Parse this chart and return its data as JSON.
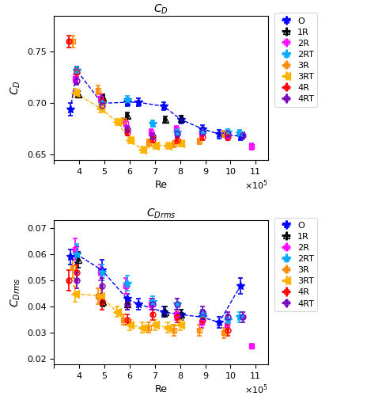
{
  "CD": {
    "O": {
      "Re": [
        365000.0,
        390000.0,
        490000.0,
        590000.0,
        635000.0,
        735000.0,
        805000.0,
        890000.0,
        955000.0,
        1040000.0
      ],
      "val": [
        0.694,
        0.732,
        0.7,
        0.701,
        0.701,
        0.697,
        0.684,
        0.675,
        0.67,
        0.668
      ],
      "xerr": [
        4000.0,
        4000.0,
        4000.0,
        4000.0,
        4000.0,
        4000.0,
        4000.0,
        4000.0,
        4000.0,
        4000.0
      ],
      "yerr": [
        0.006,
        0.004,
        0.004,
        0.004,
        0.004,
        0.004,
        0.004,
        0.004,
        0.004,
        0.004
      ]
    },
    "1R": {
      "Re": [
        395000.0,
        495000.0,
        590000.0,
        740000.0,
        805000.0
      ],
      "val": [
        0.709,
        0.706,
        0.688,
        0.684,
        0.685
      ],
      "xerr": [
        4000.0,
        4000.0,
        4000.0,
        4000.0,
        4000.0
      ],
      "yerr": [
        0.003,
        0.003,
        0.003,
        0.003,
        0.003
      ]
    },
    "2R": {
      "Re": [
        385000.0,
        485000.0,
        585000.0,
        685000.0,
        785000.0,
        885000.0,
        985000.0,
        1085000.0
      ],
      "val": [
        0.724,
        0.705,
        0.68,
        0.672,
        0.675,
        0.671,
        0.669,
        0.658
      ],
      "xerr": [
        4000.0,
        4000.0,
        4000.0,
        4000.0,
        4000.0,
        4000.0,
        4000.0,
        4000.0
      ],
      "yerr": [
        0.004,
        0.004,
        0.003,
        0.003,
        0.003,
        0.003,
        0.003,
        0.003
      ]
    },
    "2RT": {
      "Re": [
        390000.0,
        490000.0,
        590000.0,
        690000.0,
        790000.0,
        890000.0,
        990000.0,
        1035000.0
      ],
      "val": [
        0.732,
        0.7,
        0.703,
        0.68,
        0.672,
        0.672,
        0.672,
        0.671
      ],
      "xerr": [
        4000.0,
        4000.0,
        4000.0,
        4000.0,
        4000.0,
        4000.0,
        4000.0,
        4000.0
      ],
      "yerr": [
        0.004,
        0.004,
        0.004,
        0.003,
        0.003,
        0.003,
        0.003,
        0.003
      ]
    },
    "3R": {
      "Re": [
        375000.0,
        475000.0,
        575000.0,
        675000.0,
        775000.0,
        875000.0,
        975000.0
      ],
      "val": [
        0.76,
        0.713,
        0.683,
        0.662,
        0.66,
        0.663,
        0.67
      ],
      "xerr": [
        4000.0,
        4000.0,
        4000.0,
        4000.0,
        4000.0,
        4000.0,
        4000.0
      ],
      "yerr": [
        0.006,
        0.004,
        0.003,
        0.003,
        0.003,
        0.003,
        0.003
      ]
    },
    "3RT": {
      "Re": [
        385000.0,
        485000.0,
        550000.0,
        600000.0,
        650000.0,
        700000.0,
        750000.0,
        800000.0
      ],
      "val": [
        0.71,
        0.695,
        0.682,
        0.664,
        0.655,
        0.659,
        0.659,
        0.661
      ],
      "xerr": [
        4000.0,
        4000.0,
        4000.0,
        4000.0,
        4000.0,
        4000.0,
        4000.0,
        4000.0
      ],
      "yerr": [
        0.004,
        0.004,
        0.003,
        0.003,
        0.003,
        0.003,
        0.003,
        0.003
      ]
    },
    "4R": {
      "Re": [
        360000.0,
        390000.0,
        490000.0,
        590000.0,
        690000.0,
        790000.0,
        890000.0,
        990000.0
      ],
      "val": [
        0.76,
        0.73,
        0.702,
        0.672,
        0.665,
        0.664,
        0.667,
        0.667
      ],
      "xerr": [
        3000.0,
        3000.0,
        3000.0,
        3000.0,
        3000.0,
        3000.0,
        3000.0,
        3000.0
      ],
      "yerr": [
        0.006,
        0.004,
        0.004,
        0.003,
        0.003,
        0.003,
        0.003,
        0.003
      ]
    },
    "4RT": {
      "Re": [
        390000.0,
        490000.0,
        590000.0,
        690000.0,
        790000.0,
        890000.0,
        990000.0,
        1050000.0
      ],
      "val": [
        0.722,
        0.698,
        0.675,
        0.668,
        0.67,
        0.672,
        0.67,
        0.669
      ],
      "xerr": [
        4000.0,
        4000.0,
        4000.0,
        4000.0,
        4000.0,
        4000.0,
        4000.0,
        4000.0
      ],
      "yerr": [
        0.004,
        0.004,
        0.003,
        0.003,
        0.003,
        0.003,
        0.003,
        0.003
      ]
    }
  },
  "CDrms": {
    "O": {
      "Re": [
        365000.0,
        390000.0,
        490000.0,
        590000.0,
        635000.0,
        735000.0,
        805000.0,
        890000.0,
        955000.0,
        1040000.0
      ],
      "val": [
        0.059,
        0.06,
        0.054,
        0.043,
        0.041,
        0.038,
        0.037,
        0.036,
        0.034,
        0.048
      ],
      "xerr": [
        4000.0,
        4000.0,
        4000.0,
        4000.0,
        4000.0,
        4000.0,
        4000.0,
        4000.0,
        4000.0,
        4000.0
      ],
      "yerr": [
        0.003,
        0.003,
        0.004,
        0.002,
        0.002,
        0.002,
        0.002,
        0.002,
        0.002,
        0.003
      ]
    },
    "1R": {
      "Re": [
        395000.0,
        495000.0,
        590000.0,
        740000.0,
        805000.0
      ],
      "val": [
        0.058,
        0.042,
        0.041,
        0.038,
        0.037
      ],
      "xerr": [
        4000.0,
        4000.0,
        4000.0,
        4000.0,
        4000.0
      ],
      "yerr": [
        0.003,
        0.002,
        0.002,
        0.002,
        0.002
      ]
    },
    "2R": {
      "Re": [
        385000.0,
        485000.0,
        585000.0,
        685000.0,
        785000.0,
        885000.0,
        985000.0,
        1085000.0
      ],
      "val": [
        0.062,
        0.053,
        0.048,
        0.041,
        0.037,
        0.034,
        0.033,
        0.025
      ],
      "xerr": [
        4000.0,
        4000.0,
        4000.0,
        4000.0,
        4000.0,
        4000.0,
        4000.0,
        4000.0
      ],
      "yerr": [
        0.004,
        0.003,
        0.003,
        0.002,
        0.002,
        0.002,
        0.002,
        0.001
      ]
    },
    "2RT": {
      "Re": [
        390000.0,
        490000.0,
        590000.0,
        690000.0,
        790000.0,
        890000.0,
        990000.0,
        1035000.0
      ],
      "val": [
        0.06,
        0.053,
        0.049,
        0.042,
        0.041,
        0.037,
        0.035,
        0.036
      ],
      "xerr": [
        4000.0,
        4000.0,
        4000.0,
        4000.0,
        4000.0,
        4000.0,
        4000.0,
        4000.0
      ],
      "yerr": [
        0.004,
        0.003,
        0.003,
        0.002,
        0.002,
        0.002,
        0.002,
        0.002
      ]
    },
    "3R": {
      "Re": [
        375000.0,
        475000.0,
        575000.0,
        675000.0,
        775000.0,
        875000.0,
        975000.0
      ],
      "val": [
        0.055,
        0.044,
        0.035,
        0.032,
        0.031,
        0.031,
        0.03
      ],
      "xerr": [
        4000.0,
        4000.0,
        4000.0,
        4000.0,
        4000.0,
        4000.0,
        4000.0
      ],
      "yerr": [
        0.004,
        0.003,
        0.002,
        0.002,
        0.002,
        0.002,
        0.002
      ]
    },
    "3RT": {
      "Re": [
        385000.0,
        485000.0,
        550000.0,
        600000.0,
        650000.0,
        700000.0,
        750000.0,
        800000.0
      ],
      "val": [
        0.045,
        0.044,
        0.038,
        0.033,
        0.032,
        0.033,
        0.032,
        0.033
      ],
      "xerr": [
        4000.0,
        4000.0,
        4000.0,
        4000.0,
        4000.0,
        4000.0,
        4000.0,
        4000.0
      ],
      "yerr": [
        0.003,
        0.003,
        0.002,
        0.002,
        0.002,
        0.002,
        0.002,
        0.002
      ]
    },
    "4R": {
      "Re": [
        360000.0,
        390000.0,
        490000.0,
        590000.0,
        690000.0,
        790000.0,
        890000.0,
        990000.0
      ],
      "val": [
        0.05,
        0.053,
        0.042,
        0.035,
        0.037,
        0.036,
        0.035,
        0.031
      ],
      "xerr": [
        3000.0,
        3000.0,
        3000.0,
        3000.0,
        3000.0,
        3000.0,
        3000.0,
        3000.0
      ],
      "yerr": [
        0.004,
        0.003,
        0.003,
        0.002,
        0.002,
        0.002,
        0.002,
        0.002
      ]
    },
    "4RT": {
      "Re": [
        390000.0,
        490000.0,
        590000.0,
        690000.0,
        790000.0,
        890000.0,
        990000.0,
        1050000.0
      ],
      "val": [
        0.05,
        0.048,
        0.041,
        0.041,
        0.041,
        0.038,
        0.036,
        0.036
      ],
      "xerr": [
        4000.0,
        4000.0,
        4000.0,
        4000.0,
        4000.0,
        4000.0,
        4000.0,
        4000.0
      ],
      "yerr": [
        0.003,
        0.003,
        0.002,
        0.002,
        0.002,
        0.002,
        0.002,
        0.002
      ]
    }
  },
  "series_styles": {
    "O": {
      "color": "#0000FF",
      "marker": "*",
      "filled": true,
      "linestyle": "--",
      "ms": 7
    },
    "1R": {
      "color": "#000000",
      "marker": "^",
      "filled": false,
      "linestyle": "none",
      "ms": 6
    },
    "2R": {
      "color": "#FF00FF",
      "marker": "s",
      "filled": false,
      "linestyle": "none",
      "ms": 5
    },
    "2RT": {
      "color": "#00AAFF",
      "marker": "*",
      "filled": true,
      "linestyle": "none",
      "ms": 7
    },
    "3R": {
      "color": "#FF8800",
      "marker": "s",
      "filled": false,
      "linestyle": "none",
      "ms": 5
    },
    "3RT": {
      "color": "#FFB300",
      "marker": "<",
      "filled": true,
      "linestyle": "--",
      "ms": 7
    },
    "4R": {
      "color": "#FF0000",
      "marker": "o",
      "filled": false,
      "linestyle": "none",
      "ms": 5
    },
    "4RT": {
      "color": "#7700BB",
      "marker": "o",
      "filled": false,
      "linestyle": "none",
      "ms": 5
    }
  },
  "CD_ylim": [
    0.645,
    0.785
  ],
  "CDrms_ylim": [
    0.018,
    0.073
  ],
  "xlim": [
    300000.0,
    1150000.0
  ],
  "xticks": [
    300000.0,
    400000.0,
    500000.0,
    600000.0,
    700000.0,
    800000.0,
    900000.0,
    1000000.0,
    1100000.0
  ],
  "CD_yticks": [
    0.65,
    0.7,
    0.75
  ],
  "CDrms_yticks": [
    0.02,
    0.03,
    0.04,
    0.05,
    0.06,
    0.07
  ],
  "xlabel": "Re",
  "CD_ylabel": "$C_D$",
  "CDrms_ylabel": "$C_{Drms}$",
  "CD_title": "$C_D$",
  "CDrms_title": "$C_{Drms}$",
  "legend_order": [
    "O",
    "1R",
    "2R",
    "2RT",
    "3R",
    "3RT",
    "4R",
    "4RT"
  ]
}
